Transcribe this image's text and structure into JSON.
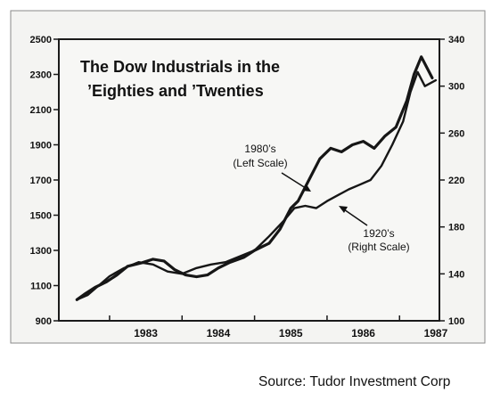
{
  "chart_data": {
    "type": "line",
    "title_line1": "The Dow Industrials in the",
    "title_line2": "’Eighties and ’Twenties",
    "x_ticks": [
      "1983",
      "1984",
      "1985",
      "1986",
      "1987"
    ],
    "x_range": [
      1982.3,
      1987.55
    ],
    "left_axis": {
      "range": [
        900,
        2500
      ],
      "ticks": [
        "900",
        "1100",
        "1300",
        "1500",
        "1700",
        "1900",
        "2100",
        "2300",
        "2500"
      ]
    },
    "right_axis": {
      "range": [
        100,
        340
      ],
      "ticks": [
        "100",
        "140",
        "180",
        "220",
        "260",
        "300",
        "340"
      ]
    },
    "grid": false,
    "annotations": [
      {
        "label_line1": "1980’s",
        "label_line2": "(Left Scale)"
      },
      {
        "label_line1": "1920’s",
        "label_line2": "(Right Scale)"
      }
    ],
    "series": [
      {
        "axis": "left",
        "x": [
          1982.55,
          1982.65,
          1982.8,
          1982.95,
          1983.1,
          1983.25,
          1983.45,
          1983.6,
          1983.75,
          1983.9,
          1984.05,
          1984.2,
          1984.35,
          1984.5,
          1984.65,
          1984.85,
          1985.0,
          1985.2,
          1985.35,
          1985.5,
          1985.6,
          1985.75,
          1985.9,
          1986.05,
          1986.2,
          1986.35,
          1986.5,
          1986.65,
          1986.8,
          1986.95,
          1987.1,
          1987.2,
          1987.3,
          1987.45
        ],
        "values": [
          1020,
          1050,
          1090,
          1120,
          1160,
          1210,
          1230,
          1250,
          1240,
          1190,
          1160,
          1150,
          1160,
          1200,
          1230,
          1260,
          1300,
          1340,
          1420,
          1540,
          1580,
          1700,
          1820,
          1880,
          1860,
          1900,
          1920,
          1880,
          1950,
          2000,
          2150,
          2300,
          2400,
          2280
        ]
      },
      {
        "axis": "right",
        "x": [
          1982.55,
          1982.7,
          1982.85,
          1983.0,
          1983.2,
          1983.4,
          1983.6,
          1983.8,
          1984.0,
          1984.2,
          1984.4,
          1984.6,
          1984.8,
          1985.0,
          1985.2,
          1985.4,
          1985.55,
          1985.7,
          1985.85,
          1986.0,
          1986.15,
          1986.3,
          1986.45,
          1986.6,
          1986.75,
          1986.9,
          1987.05,
          1987.15,
          1987.25,
          1987.35,
          1987.5
        ],
        "values": [
          118,
          122,
          130,
          138,
          145,
          150,
          148,
          142,
          140,
          145,
          148,
          150,
          155,
          160,
          172,
          185,
          196,
          198,
          196,
          202,
          207,
          212,
          216,
          220,
          232,
          250,
          270,
          295,
          312,
          300,
          305
        ]
      }
    ]
  },
  "source_text": "Source: Tudor Investment Corp"
}
